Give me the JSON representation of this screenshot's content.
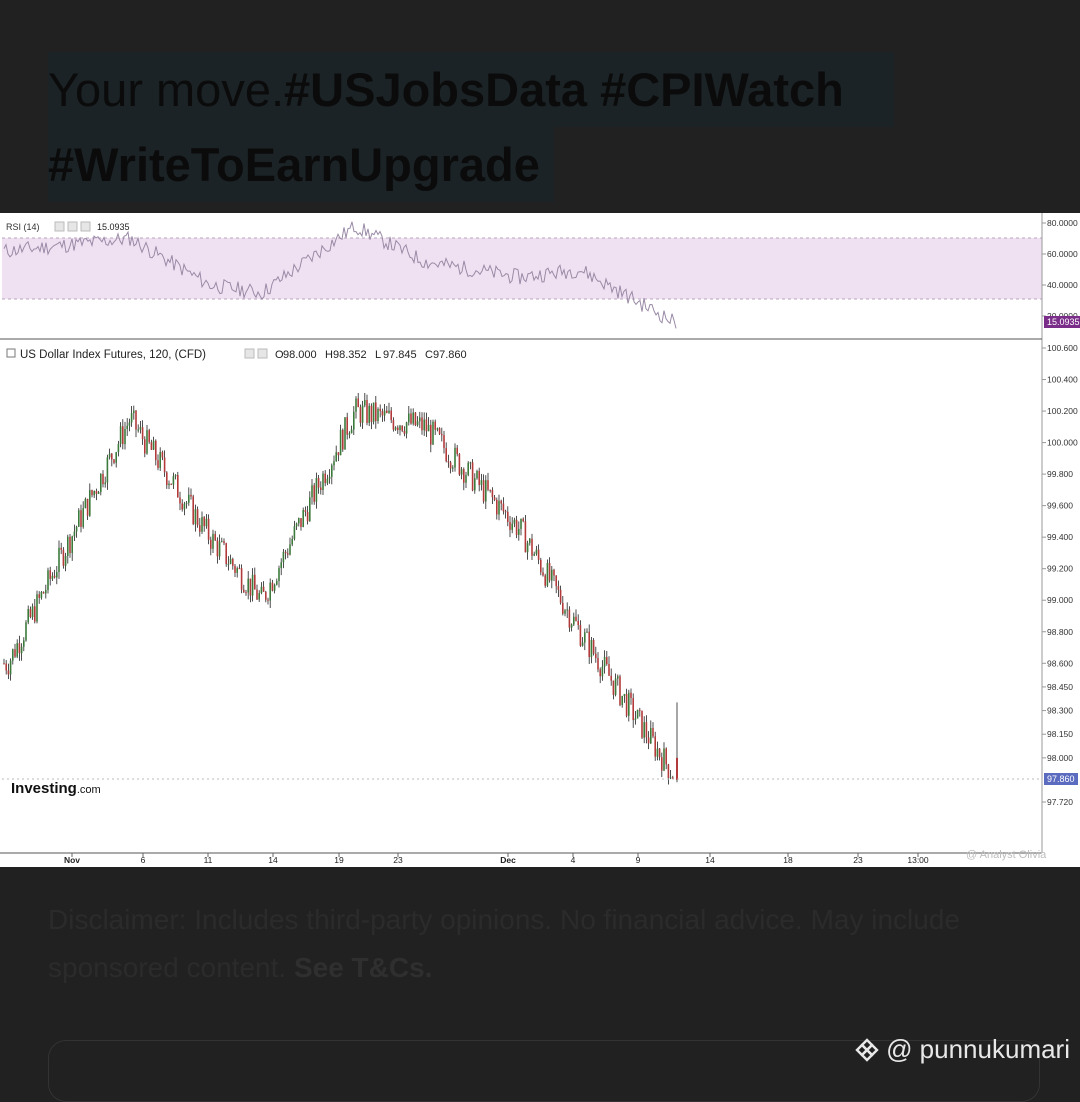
{
  "headline": {
    "lead": "Your move.",
    "tags_line1": "#USJobsData #CPIWatch",
    "tags_line2": "#WriteToEarnUpgrade"
  },
  "rsi_panel": {
    "label": "RSI (14)",
    "value": "15.0935",
    "axis_ticks": [
      "80.0000",
      "60.0000",
      "40.0000",
      "20.0000"
    ],
    "badge": "15.0935",
    "band_color": "#f0e1f2",
    "badge_color": "#7b2d8a"
  },
  "price_panel": {
    "symbol": "US Dollar Index Futures, 120, (CFD)",
    "ohlc": [
      {
        "k": "O",
        "v": "98.000"
      },
      {
        "k": "H",
        "v": "98.352"
      },
      {
        "k": "L",
        "v": "97.845"
      },
      {
        "k": "C",
        "v": "97.860"
      }
    ],
    "axis_ticks": [
      "100.600",
      "100.400",
      "100.200",
      "100.000",
      "99.800",
      "99.600",
      "99.400",
      "99.200",
      "99.000",
      "98.800",
      "98.600",
      "98.450",
      "98.300",
      "98.150",
      "98.000",
      "97.720"
    ],
    "price_badge": "97.860",
    "badge_color": "#5b6bbf",
    "watermark": "Investing",
    "watermark_suffix": ".com",
    "x_ticks": [
      "Nov",
      "6",
      "11",
      "14",
      "19",
      "23",
      "Dec",
      "4",
      "9",
      "14",
      "18",
      "23",
      "13:00"
    ],
    "analyst": "@ Analyst Olivia"
  },
  "chart_data": {
    "type": "line",
    "title": "US Dollar Index Futures, 120, (CFD)",
    "x": [
      "Nov",
      "6",
      "11",
      "14",
      "19",
      "23",
      "Dec",
      "4",
      "9"
    ],
    "series": [
      {
        "name": "US Dollar Index Futures, 120, (CFD)",
        "values": [
          98.6,
          100.15,
          99.4,
          99.0,
          100.2,
          100.1,
          99.45,
          98.8,
          97.86
        ]
      },
      {
        "name": "RSI (14)",
        "values": [
          62,
          70,
          40,
          35,
          78,
          55,
          45,
          50,
          15.09
        ]
      }
    ],
    "ylim": [
      97.72,
      100.6
    ],
    "colors": {
      "up": "#3a7a3a",
      "down": "#b33a3a"
    }
  },
  "disclaimer": {
    "text": "Disclaimer: Includes third-party opinions. No financial advice. May include sponsored content. ",
    "link": "See T&Cs."
  },
  "credit": {
    "handle": "@ punnukumari",
    "icon": "binance-diamond-icon"
  }
}
